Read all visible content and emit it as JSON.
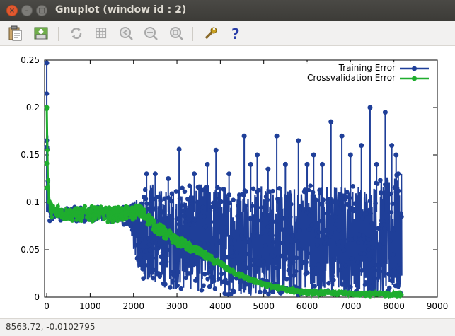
{
  "window": {
    "title": "Gnuplot (window id : 2)",
    "close_glyph": "×",
    "min_glyph": "–",
    "max_glyph": "□"
  },
  "toolbar": {
    "buttons": [
      {
        "icon": "clipboard-icon",
        "label": "Copy to clipboard"
      },
      {
        "icon": "print-icon",
        "label": "Print"
      },
      {
        "icon": "replot-icon",
        "label": "Replot"
      },
      {
        "icon": "grid-icon",
        "label": "Toggle grid"
      },
      {
        "icon": "previous-zoom-icon",
        "label": "Previous zoom"
      },
      {
        "icon": "next-zoom-icon",
        "label": "Next zoom"
      },
      {
        "icon": "autoscale-icon",
        "label": "Autoscale"
      },
      {
        "icon": "configure-icon",
        "label": "Configure"
      },
      {
        "icon": "help-icon",
        "label": "Help"
      }
    ]
  },
  "status": {
    "coordinates": "8563.72, -0.0102795"
  },
  "chart_data": {
    "type": "line",
    "xlim": [
      -50,
      9000
    ],
    "ylim": [
      0,
      0.25
    ],
    "x_ticks": [
      "0",
      "1000",
      "2000",
      "3000",
      "4000",
      "5000",
      "6000",
      "7000",
      "8000",
      "9000"
    ],
    "x_tick_values": [
      0,
      1000,
      2000,
      3000,
      4000,
      5000,
      6000,
      7000,
      8000,
      9000
    ],
    "y_ticks": [
      "0",
      "0.05",
      "0.1",
      "0.15",
      "0.2",
      "0.25"
    ],
    "y_tick_values": [
      0,
      0.05,
      0.1,
      0.15,
      0.2,
      0.25
    ],
    "legend_position": "top-right",
    "series": [
      {
        "name": "Training Error",
        "color": "#1f3f99",
        "envelope_x": [
          0,
          30,
          60,
          100,
          500,
          1000,
          1500,
          1900,
          2000,
          2100,
          2200,
          2400,
          2600,
          3000,
          3500,
          4000,
          4500,
          5000,
          5500,
          6000,
          6500,
          7000,
          7500,
          8000,
          8180
        ],
        "envelope_high": [
          0.247,
          0.12,
          0.1,
          0.095,
          0.095,
          0.095,
          0.095,
          0.095,
          0.1,
          0.105,
          0.11,
          0.125,
          0.115,
          0.115,
          0.12,
          0.12,
          0.115,
          0.12,
          0.115,
          0.12,
          0.12,
          0.12,
          0.12,
          0.13,
          0.13
        ],
        "envelope_low": [
          0.085,
          0.085,
          0.08,
          0.082,
          0.08,
          0.08,
          0.08,
          0.075,
          0.05,
          0.03,
          0.02,
          0.015,
          0.01,
          0.008,
          0.005,
          0.003,
          0.002,
          0.001,
          0.001,
          0.001,
          0.001,
          0.001,
          0.001,
          0.001,
          0.001
        ],
        "spikes": [
          [
            2300,
            0.13
          ],
          [
            2500,
            0.13
          ],
          [
            2800,
            0.125
          ],
          [
            3050,
            0.156
          ],
          [
            3400,
            0.13
          ],
          [
            3700,
            0.14
          ],
          [
            3900,
            0.155
          ],
          [
            4200,
            0.13
          ],
          [
            4550,
            0.17
          ],
          [
            4700,
            0.14
          ],
          [
            4850,
            0.15
          ],
          [
            5100,
            0.135
          ],
          [
            5300,
            0.17
          ],
          [
            5500,
            0.14
          ],
          [
            5800,
            0.165
          ],
          [
            6000,
            0.14
          ],
          [
            6150,
            0.15
          ],
          [
            6350,
            0.14
          ],
          [
            6550,
            0.185
          ],
          [
            6800,
            0.17
          ],
          [
            7000,
            0.15
          ],
          [
            7250,
            0.16
          ],
          [
            7450,
            0.2
          ],
          [
            7600,
            0.14
          ],
          [
            7800,
            0.195
          ],
          [
            7950,
            0.16
          ],
          [
            8050,
            0.15
          ],
          [
            8100,
            0.13
          ]
        ]
      },
      {
        "name": "Crossvalidation Error",
        "color": "#1fad2e",
        "x": [
          0,
          20,
          50,
          100,
          300,
          600,
          1000,
          1500,
          1900,
          2100,
          2300,
          2500,
          2700,
          3000,
          3300,
          3600,
          4000,
          4300,
          4600,
          5000,
          5500,
          6000,
          6500,
          7000,
          7500,
          8000,
          8180
        ],
        "y": [
          0.2,
          0.14,
          0.1,
          0.09,
          0.09,
          0.088,
          0.088,
          0.087,
          0.088,
          0.09,
          0.085,
          0.075,
          0.068,
          0.06,
          0.052,
          0.045,
          0.035,
          0.027,
          0.02,
          0.013,
          0.008,
          0.005,
          0.004,
          0.004,
          0.003,
          0.003,
          0.003
        ]
      }
    ]
  }
}
